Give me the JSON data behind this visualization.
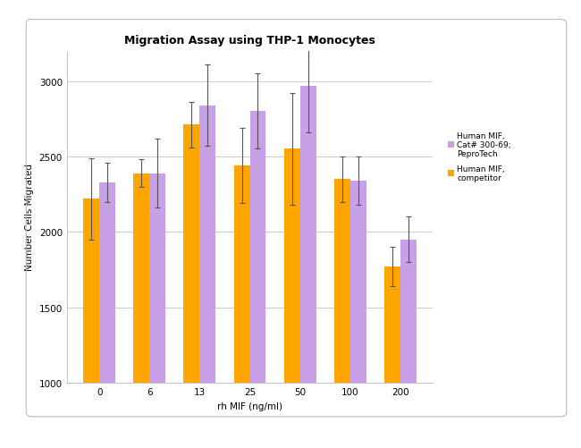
{
  "title": "Migration Assay using THP-1 Monocytes",
  "xlabel": "rh MIF (ng/ml)",
  "ylabel": "Number Cells Migrated",
  "categories": [
    0,
    6,
    13,
    25,
    50,
    100,
    200
  ],
  "peprotech_values": [
    2330,
    2390,
    2840,
    2800,
    2970,
    2340,
    1950
  ],
  "peprotech_errors": [
    130,
    230,
    270,
    250,
    310,
    160,
    150
  ],
  "competitor_values": [
    2220,
    2390,
    2710,
    2440,
    2550,
    2350,
    1770
  ],
  "competitor_errors": [
    270,
    90,
    150,
    250,
    370,
    150,
    130
  ],
  "peprotech_color": "#C8A0E8",
  "competitor_color": "#FFA500",
  "ylim": [
    1000,
    3200
  ],
  "yticks": [
    1000,
    1500,
    2000,
    2500,
    3000
  ],
  "legend_line1": "Human MIF,",
  "legend_line2": "Cat# 300-69;",
  "legend_line3": "PeproTech",
  "legend_competitor": "Human MIF,\ncompetitor",
  "bar_width": 0.32,
  "title_fontsize": 9,
  "axis_label_fontsize": 7.5,
  "tick_fontsize": 7.5,
  "legend_fontsize": 6.5,
  "background_color": "#ffffff",
  "grid_color": "#cccccc",
  "border_color": "#cccccc",
  "spine_color": "#aaaaaa"
}
